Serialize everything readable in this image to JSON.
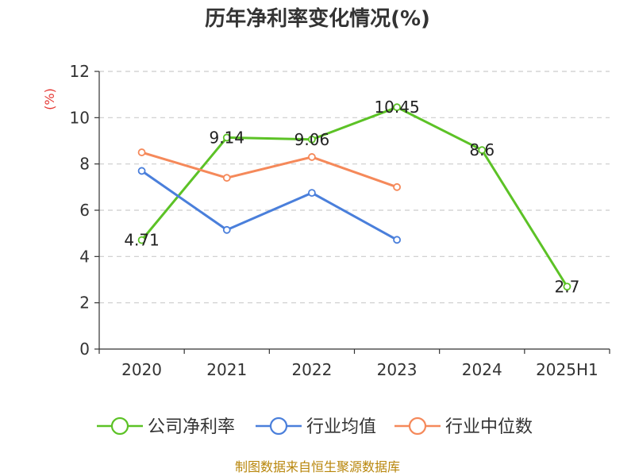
{
  "chart_data": {
    "type": "line",
    "title": "历年净利率变化情况(%)",
    "ylabel": "(%)",
    "xlabel": "",
    "categories": [
      "2020",
      "2021",
      "2022",
      "2023",
      "2024",
      "2025H1"
    ],
    "ylim": [
      0,
      12
    ],
    "yticks": [
      0,
      2,
      4,
      6,
      8,
      10,
      12
    ],
    "grid": true,
    "legend_position": "bottom",
    "series": [
      {
        "name": "公司净利率",
        "color": "#5cc226",
        "values": [
          4.71,
          9.14,
          9.06,
          10.45,
          8.6,
          2.7
        ],
        "show_labels": true
      },
      {
        "name": "行业均值",
        "color": "#4a7fdb",
        "values": [
          7.7,
          5.15,
          6.75,
          4.72,
          null,
          null
        ],
        "show_labels": false
      },
      {
        "name": "行业中位数",
        "color": "#f5895a",
        "values": [
          8.5,
          7.4,
          8.3,
          7.0,
          null,
          null
        ],
        "show_labels": false
      }
    ],
    "data_labels": [
      "4.71",
      "9.14",
      "9.06",
      "10.45",
      "8.6",
      "2.7"
    ]
  },
  "source": "制图数据来自恒生聚源数据库",
  "colors": {
    "unit_label": "#e53935",
    "source_text": "#b8860b",
    "axis": "#333333",
    "grid": "#cccccc"
  }
}
